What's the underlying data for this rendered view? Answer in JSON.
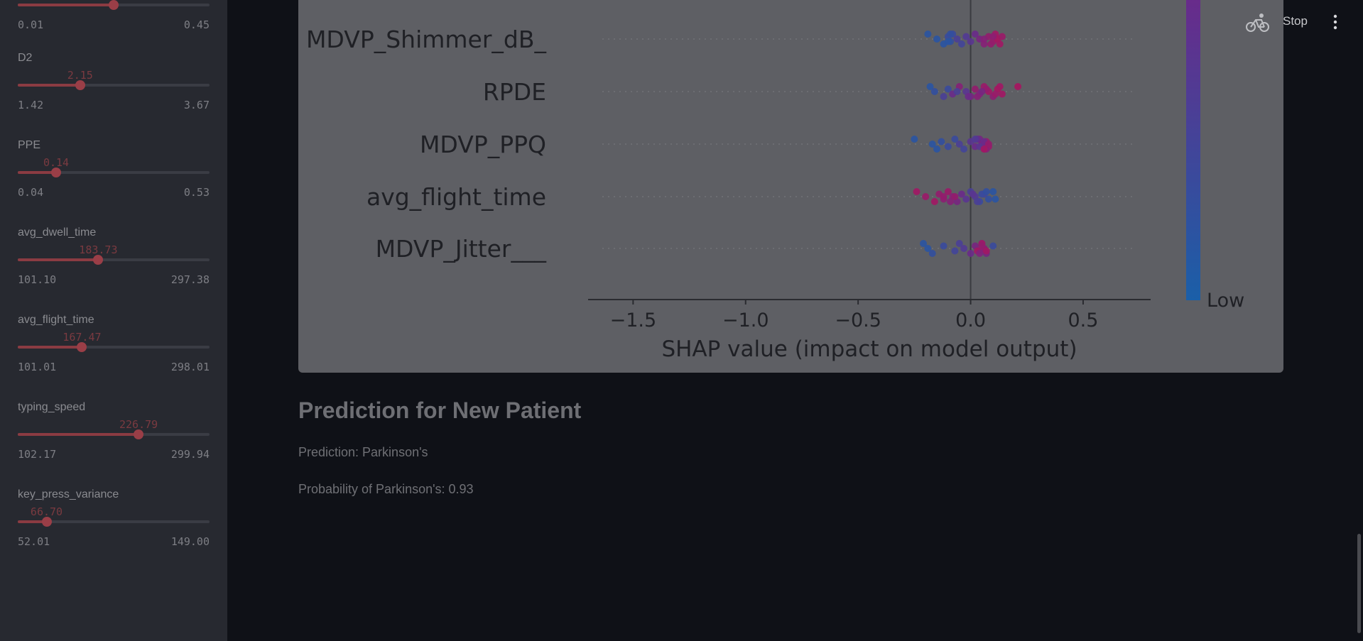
{
  "sidebar": {
    "top_fragment": {
      "min": "0.01",
      "max": "0.45",
      "fraction": 0.5
    },
    "sliders": [
      {
        "label": "D2",
        "value": "2.15",
        "min": "1.42",
        "max": "3.67",
        "fraction": 0.325
      },
      {
        "label": "PPE",
        "value": "0.14",
        "min": "0.04",
        "max": "0.53",
        "fraction": 0.2
      },
      {
        "label": "avg_dwell_time",
        "value": "183.73",
        "min": "101.10",
        "max": "297.38",
        "fraction": 0.42
      },
      {
        "label": "avg_flight_time",
        "value": "167.47",
        "min": "101.01",
        "max": "298.01",
        "fraction": 0.335
      },
      {
        "label": "typing_speed",
        "value": "226.79",
        "min": "102.17",
        "max": "299.94",
        "fraction": 0.63
      },
      {
        "label": "key_press_variance",
        "value": "66.70",
        "min": "52.01",
        "max": "149.00",
        "fraction": 0.15
      }
    ]
  },
  "toolbar": {
    "status_icon": "bicycle-icon",
    "stop_label": "Stop",
    "menu_icon": "kebab-menu-icon"
  },
  "chart_data": {
    "type": "scatter",
    "xlabel": "SHAP value (impact on model output)",
    "features": [
      "MDVP_Shimmer_dB_",
      "RPDE",
      "MDVP_PPQ",
      "avg_flight_time",
      "MDVP_Jitter___"
    ],
    "xlim": [
      -1.7,
      0.8
    ],
    "xticks": [
      -1.5,
      -1.0,
      -0.5,
      0.0,
      0.5
    ],
    "xtick_labels": [
      "−1.5",
      "−1.0",
      "−0.5",
      "0.0",
      "0.5"
    ],
    "colorbar_label": "Low",
    "colors": {
      "low": "#1a5fa8",
      "high": "#b0125a",
      "mid": "#6a2a8a"
    },
    "points": [
      {
        "feature": "MDVP_Shimmer_dB_",
        "x": [
          -0.19,
          -0.15,
          -0.12,
          -0.1,
          -0.09,
          -0.08,
          -0.06,
          -0.04,
          -0.02,
          0.0,
          0.02,
          0.04,
          0.06,
          0.08,
          0.1,
          0.11,
          0.12,
          0.13,
          0.14,
          -0.1,
          -0.09,
          0.06,
          0.09,
          0.1
        ],
        "v": [
          0.1,
          0.1,
          0.1,
          0.2,
          0.15,
          0.2,
          0.3,
          0.25,
          0.35,
          0.4,
          0.5,
          0.6,
          0.7,
          0.8,
          0.85,
          0.9,
          0.95,
          0.9,
          0.85,
          0.1,
          0.15,
          0.7,
          0.8,
          0.75
        ]
      },
      {
        "feature": "RPDE",
        "x": [
          -0.18,
          -0.16,
          -0.12,
          -0.1,
          -0.08,
          -0.05,
          -0.02,
          0.0,
          0.02,
          0.04,
          0.06,
          0.08,
          0.1,
          0.12,
          0.14,
          0.21,
          -0.06,
          0.03,
          0.07,
          0.11,
          0.13,
          0.05,
          -0.01
        ],
        "v": [
          0.1,
          0.15,
          0.3,
          0.2,
          0.5,
          0.7,
          0.4,
          0.6,
          0.8,
          0.65,
          0.85,
          0.9,
          0.75,
          0.95,
          0.9,
          0.95,
          0.3,
          0.7,
          0.8,
          0.85,
          0.9,
          0.6,
          0.5
        ]
      },
      {
        "feature": "MDVP_PPQ",
        "x": [
          -0.25,
          -0.17,
          -0.15,
          -0.13,
          -0.1,
          -0.07,
          -0.05,
          -0.03,
          0.0,
          0.02,
          0.04,
          0.05,
          0.06,
          0.07,
          0.08,
          0.03,
          0.05,
          0.07,
          0.06,
          0.04,
          0.02,
          0.08,
          0.06
        ],
        "v": [
          0.1,
          0.1,
          0.1,
          0.15,
          0.2,
          0.2,
          0.3,
          0.25,
          0.4,
          0.5,
          0.6,
          0.7,
          0.75,
          0.8,
          0.85,
          0.45,
          0.6,
          0.7,
          0.5,
          0.4,
          0.35,
          0.8,
          0.9
        ]
      },
      {
        "feature": "avg_flight_time",
        "x": [
          -0.24,
          -0.2,
          -0.16,
          -0.14,
          -0.12,
          -0.1,
          -0.08,
          -0.06,
          -0.04,
          -0.02,
          0.0,
          0.02,
          0.04,
          0.06,
          0.08,
          0.1,
          -0.07,
          0.03,
          0.05,
          0.11,
          0.07,
          -0.12,
          -0.09,
          0.01
        ],
        "v": [
          0.9,
          0.85,
          0.9,
          0.8,
          0.75,
          0.85,
          0.7,
          0.6,
          0.5,
          0.4,
          0.3,
          0.35,
          0.2,
          0.25,
          0.15,
          0.1,
          0.8,
          0.3,
          0.2,
          0.1,
          0.15,
          0.8,
          0.7,
          0.4
        ]
      },
      {
        "feature": "MDVP_Jitter___",
        "x": [
          -0.21,
          -0.19,
          -0.17,
          -0.12,
          -0.07,
          -0.05,
          -0.03,
          0.0,
          0.02,
          0.04,
          0.05,
          0.06,
          0.07,
          0.1,
          0.03,
          0.05,
          0.06,
          0.04,
          0.05,
          0.07
        ],
        "v": [
          0.1,
          0.1,
          0.15,
          0.2,
          0.25,
          0.3,
          0.35,
          0.5,
          0.6,
          0.7,
          0.8,
          0.75,
          0.6,
          0.2,
          0.9,
          0.85,
          0.7,
          0.65,
          0.8,
          0.9
        ]
      }
    ]
  },
  "main": {
    "heading": "Prediction for New Patient",
    "prediction": "Prediction: Parkinson's",
    "probability": "Probability of Parkinson's: 0.93"
  }
}
